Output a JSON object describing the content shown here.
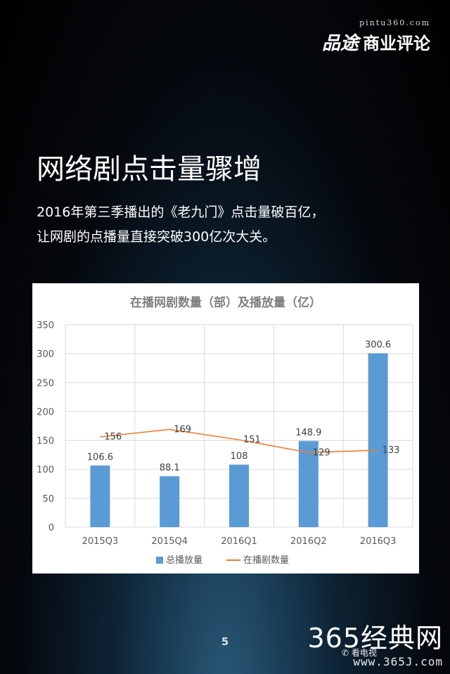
{
  "brand": {
    "url": "pintu360.com",
    "logo": "品途",
    "name": "商业评论"
  },
  "headline": "网络剧点击量骤增",
  "subtitle_lines": [
    "2016年第三季播出的《老九门》点击量破百亿，",
    "让网剧的点播量直接突破300亿次大关。"
  ],
  "page_number": "5",
  "watermark": {
    "title": "365经典网",
    "url": "www.365J.com",
    "wechat_label": "看电视"
  },
  "colors": {
    "bar": "#5B9BD5",
    "line": "#ED7D31",
    "title_text": "#7F7F7F",
    "axis_text": "#595959",
    "grid": "#D9D9D9"
  },
  "chart_data": {
    "type": "bar",
    "title": "在播网剧数量（部）及播放量（亿）",
    "categories": [
      "2015Q3",
      "2015Q4",
      "2016Q1",
      "2016Q2",
      "2016Q3"
    ],
    "series": [
      {
        "name": "总播放量",
        "type": "bar",
        "values": [
          106.6,
          88.1,
          108,
          148.9,
          300.6
        ],
        "labels": [
          "106.6",
          "88.1",
          "108",
          "148.9",
          "300.6"
        ]
      },
      {
        "name": "在播剧数量",
        "type": "line",
        "values": [
          156,
          169,
          151,
          129,
          133
        ],
        "labels": [
          "156",
          "169",
          "151",
          "129",
          "133"
        ]
      }
    ],
    "ylim": [
      0,
      350
    ],
    "yticks": [
      "0",
      "50",
      "100",
      "150",
      "200",
      "250",
      "300",
      "350"
    ],
    "grid": true,
    "legend": "bottom"
  }
}
